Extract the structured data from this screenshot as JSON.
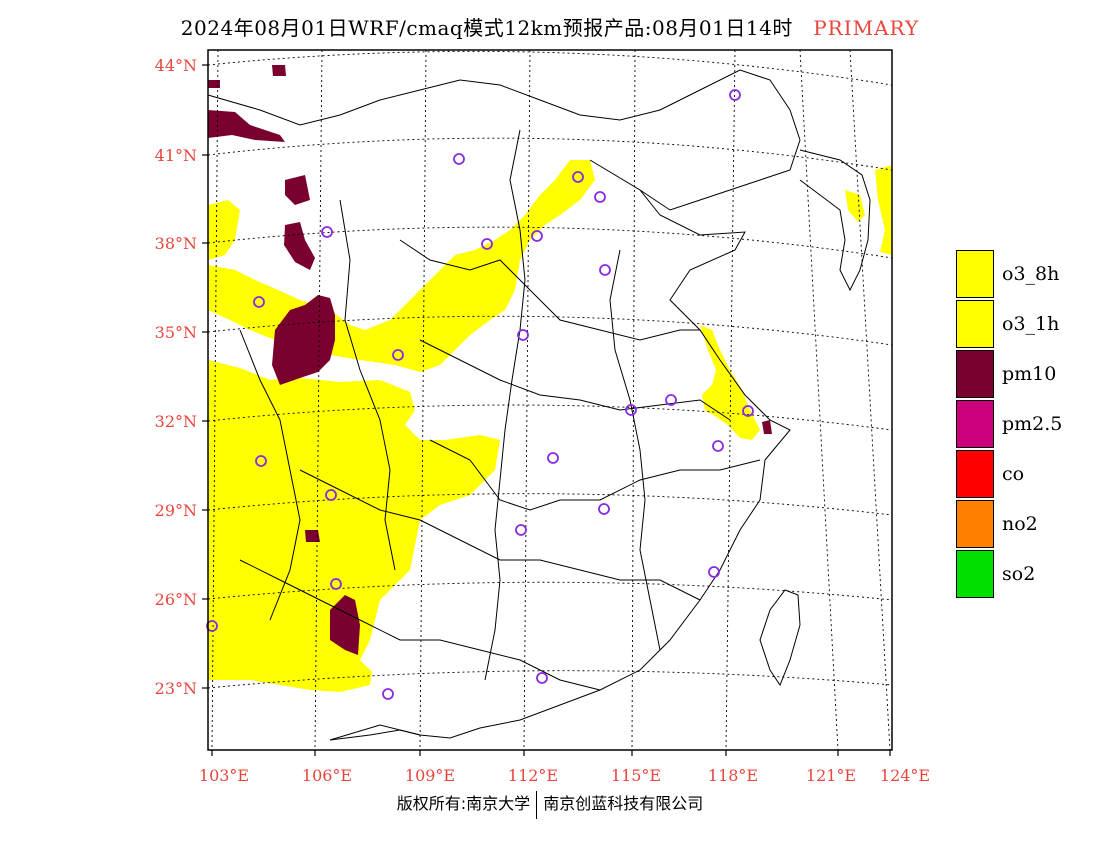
{
  "title": {
    "main": "2024年08月01日WRF/cmaq模式12km预报产品:08月01日14时",
    "tag": "PRIMARY"
  },
  "map": {
    "lat_labels": [
      "44°N",
      "41°N",
      "38°N",
      "35°N",
      "32°N",
      "29°N",
      "26°N",
      "23°N"
    ],
    "lon_labels": [
      "103°E",
      "106°E",
      "109°E",
      "112°E",
      "115°E",
      "118°E",
      "121°E",
      "124°E"
    ],
    "pollutant_colors": {
      "o3_8h": "#ffff00",
      "pm10": "#7a0030",
      "background": "#ffffff",
      "station_marker": "#8a2be2",
      "axis_labels": "#e8453c"
    }
  },
  "legend": [
    {
      "label": "o3_8h",
      "color": "#ffff00"
    },
    {
      "label": "o3_1h",
      "color": "#ffff00"
    },
    {
      "label": "pm10",
      "color": "#7a0030"
    },
    {
      "label": "pm2.5",
      "color": "#cc007a"
    },
    {
      "label": "co",
      "color": "#ff0000"
    },
    {
      "label": "no2",
      "color": "#ff8000"
    },
    {
      "label": "so2",
      "color": "#00e000"
    }
  ],
  "footer": {
    "left": "版权所有:南京大学",
    "right": "南京创蓝科技有限公司"
  }
}
